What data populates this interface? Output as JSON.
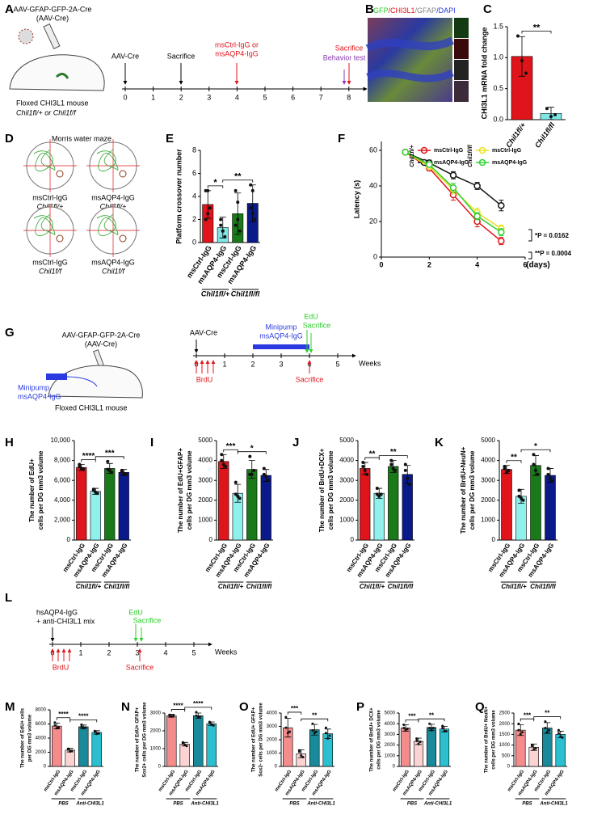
{
  "panel_labels": [
    "A",
    "B",
    "C",
    "D",
    "E",
    "F",
    "G",
    "H",
    "I",
    "J",
    "K",
    "L",
    "M",
    "N",
    "O",
    "P",
    "Q"
  ],
  "panel_a": {
    "vector": "AAV-GFAP-GFP-2A-Cre",
    "vector_short": "(AAV-Cre)",
    "mouse": "Floxed CHI3L1 mouse",
    "genotypes": "Chil1fl/+ or Chil1f/f",
    "timeline": {
      "ticks": [
        0,
        1,
        2,
        3,
        4,
        5,
        6,
        7,
        8
      ],
      "unit": "Weeks",
      "events": [
        "AAV-Cre",
        "Sacrifice",
        "msCtrl-IgG or",
        "msAQP4-IgG",
        "Sacrifice",
        "Behavior test"
      ]
    }
  },
  "panel_b": {
    "stain": [
      "GFP",
      "/CHI3L1",
      "/GFAP",
      "/DAPI"
    ]
  },
  "panel_d": {
    "title": "Morris water maze",
    "maps": [
      {
        "treatment": "msCtrl-IgG",
        "genotype": "Chil1fl/+"
      },
      {
        "treatment": "msAQP4-IgG",
        "genotype": "Chil1fl/+"
      },
      {
        "treatment": "msCtrl-IgG",
        "genotype": "Chil1f/f"
      },
      {
        "treatment": "msAQP4-IgG",
        "genotype": "Chil1f/f"
      }
    ]
  },
  "panel_g": {
    "vector": "AAV-GFAP-GFP-2A-Cre",
    "vector_short": "(AAV-Cre)",
    "pump": "Minipump",
    "pump_drug": "msAQP4-IgG",
    "mouse": "Floxed CHI3L1 mouse",
    "timeline": {
      "ticks": [
        0,
        1,
        2,
        3,
        4,
        5
      ],
      "unit": "Weeks",
      "events": [
        "AAV-Cre",
        "Minipump",
        "msAQP4-IgG",
        "EdU",
        "Sacrifice",
        "BrdU",
        "Sacrifice"
      ]
    }
  },
  "panel_l": {
    "timeline": {
      "ticks": [
        0,
        1,
        2,
        3,
        4,
        5
      ],
      "unit": "Weeks",
      "events": [
        "hsAQP4-IgG",
        "+ anti-CHI3L1 mix",
        "EdU",
        "Sacrifice",
        "BrdU",
        "Sacrifice"
      ]
    }
  },
  "chart_data": [
    {
      "type": "bar",
      "y_label": [
        "CHI3L1 mRNA fold change"
      ],
      "categories": [
        "Chil1fl/+",
        "Chil1fl/fl"
      ],
      "colors": [
        "#e0141b",
        "#7fe6e6"
      ],
      "values": [
        1.02,
        0.1
      ],
      "errors": [
        0.32,
        0.1
      ],
      "points": [
        [
          1.35,
          0.95,
          0.75
        ],
        [
          0.18,
          0.05,
          0.08
        ]
      ],
      "ylim": [
        0,
        1.5
      ],
      "yticks": [
        {
          "value": 0,
          "label": "0.0"
        },
        {
          "value": 0.5,
          "label": "0.5"
        },
        {
          "value": 1,
          "label": "1.0"
        },
        {
          "value": 1.5,
          "label": "1.5"
        }
      ],
      "significance": [
        "**"
      ]
    },
    {
      "type": "bar",
      "y_label": [
        "Platform crossover number"
      ],
      "categories": [
        "msCtrl-IgG",
        "msAQP4-IgG",
        "msCtrl-IgG",
        "msAQP4-IgG"
      ],
      "groups": [
        "Chil1fl/+",
        "Chil1fl/fl"
      ],
      "colors": [
        "#e0141b",
        "#7fe6e6",
        "#1a7a1a",
        "#0a1a8a"
      ],
      "values": [
        3.3,
        1.3,
        2.5,
        3.4
      ],
      "errors": [
        1.2,
        0.9,
        1.8,
        1.6
      ],
      "points": [
        [
          4.5,
          4.5,
          3,
          2,
          2.5
        ],
        [
          2,
          1,
          0.5,
          1.5,
          1
        ],
        [
          4.5,
          2,
          1,
          1.5,
          3.5
        ],
        [
          5,
          4.5,
          2,
          3,
          2.5
        ]
      ],
      "ylim": [
        0,
        8
      ],
      "yticks": [
        0,
        2,
        4,
        6,
        8
      ],
      "significance": [
        "*",
        "**"
      ]
    },
    {
      "type": "line",
      "y_label": [
        "Latency (s)"
      ],
      "x_label": "(days)",
      "x": [
        1,
        2,
        3,
        4,
        5
      ],
      "xlim": [
        0,
        6
      ],
      "xticks": [
        0,
        2,
        4,
        6
      ],
      "ylim": [
        0,
        65
      ],
      "yticks": [
        0,
        20,
        40,
        60
      ],
      "groups": [
        "Chil1fl/+",
        "Chil1fl/fl"
      ],
      "series": [
        {
          "name": "msCtrl-IgG",
          "color": "#e0141b",
          "values": [
            59,
            50,
            35,
            20,
            9
          ],
          "errors": [
            0,
            1.5,
            3,
            3,
            2
          ]
        },
        {
          "name": "msAQP4-IgG",
          "color": "#111111",
          "values": [
            59,
            53,
            46,
            40,
            29
          ],
          "errors": [
            0,
            1.5,
            2,
            2,
            3
          ]
        },
        {
          "name": "msCtrl-IgG",
          "color": "#e8e020",
          "values": [
            59,
            51,
            38,
            25,
            16
          ],
          "errors": [
            0,
            1.5,
            2.5,
            2.5,
            2
          ]
        },
        {
          "name": "msAQP4-IgG",
          "color": "#30d030",
          "values": [
            59,
            52,
            39,
            23,
            14
          ],
          "errors": [
            0,
            1.5,
            2.5,
            2,
            2
          ]
        }
      ],
      "annotations": [
        "*P = 0.0162",
        "**P = 0.0004"
      ]
    },
    {
      "type": "bar",
      "y_label": [
        "The number of EdU+",
        "cells per DG mm3 volume"
      ],
      "categories": [
        "msCtrl-IgG",
        "msAQP4-IgG",
        "msCtrl-IgG",
        "msAQP4-IgG"
      ],
      "groups": [
        "Chil1fl/+",
        "Chil1fl/fl"
      ],
      "colors": [
        "#e0141b",
        "#8ff0ec",
        "#1a7a1a",
        "#0a1a8a"
      ],
      "values": [
        7300,
        4900,
        7200,
        6800
      ],
      "errors": [
        300,
        300,
        500,
        300
      ],
      "points": [
        [
          7600,
          7200,
          7100,
          7400
        ],
        [
          5100,
          4800,
          4700,
          5000
        ],
        [
          7900,
          7000,
          6800,
          7100
        ],
        [
          6900,
          6700,
          6600,
          7000
        ]
      ],
      "ylim": [
        0,
        10000
      ],
      "yticks": [
        0,
        {
          "value": 2000,
          "label": "2,000"
        },
        {
          "value": 4000,
          "label": "4,000"
        },
        {
          "value": 6000,
          "label": "6,000"
        },
        {
          "value": 8000,
          "label": "8,000"
        },
        {
          "value": 10000,
          "label": "10,000"
        }
      ],
      "significance": [
        "****",
        "***"
      ]
    },
    {
      "type": "bar",
      "y_label": [
        "The number of EdU+GFAP+",
        "cells per DG mm3 volume"
      ],
      "categories": [
        "msCtrl-IgG",
        "msAQP4-IgG",
        "msCtrl-IgG",
        "msAQP4-IgG"
      ],
      "groups": [
        "Chil1fl/+",
        "Chil1fl/fl"
      ],
      "colors": [
        "#e0141b",
        "#8ff0ec",
        "#1a7a1a",
        "#0a1a8a"
      ],
      "values": [
        3950,
        2350,
        3550,
        3250
      ],
      "errors": [
        350,
        450,
        450,
        300
      ],
      "points": [
        [
          4300,
          3800,
          3700,
          4000
        ],
        [
          2900,
          2200,
          2100,
          2300
        ],
        [
          4200,
          3300,
          3500,
          3300
        ],
        [
          3600,
          3200,
          3000,
          3300
        ]
      ],
      "ylim": [
        0,
        5000
      ],
      "yticks": [
        0,
        1000,
        2000,
        3000,
        4000,
        5000
      ],
      "significance": [
        "***",
        "*"
      ]
    },
    {
      "type": "bar",
      "y_label": [
        "The number of BrdU+DCX+",
        "cells per DG mm3 volume"
      ],
      "categories": [
        "msCtrl-IgG",
        "msAQP4-IgG",
        "msCtrl-IgG",
        "msAQP4-IgG"
      ],
      "groups": [
        "Chil1fl/+",
        "Chil1fl/fl"
      ],
      "colors": [
        "#e0141b",
        "#8ff0ec",
        "#1a7a1a",
        "#0a1a8a"
      ],
      "values": [
        3600,
        2350,
        3700,
        3300
      ],
      "errors": [
        300,
        250,
        300,
        450
      ],
      "points": [
        [
          3900,
          3500,
          3300,
          3700
        ],
        [
          2600,
          2200,
          2300,
          2300
        ],
        [
          4000,
          3600,
          3500,
          3800
        ],
        [
          3800,
          3100,
          2800,
          3500
        ]
      ],
      "ylim": [
        0,
        5000
      ],
      "yticks": [
        0,
        1000,
        2000,
        3000,
        4000,
        5000
      ],
      "significance": [
        "**",
        "**"
      ]
    },
    {
      "type": "bar",
      "y_label": [
        "The number of BrdU+NeuN+",
        "cells per DG mm3 volume"
      ],
      "categories": [
        "msCtrl-IgG",
        "msAQP4-IgG",
        "msCtrl-IgG",
        "msAQP4-IgG"
      ],
      "groups": [
        "Chil1fl/+",
        "Chil1fl/fl"
      ],
      "colors": [
        "#e0141b",
        "#8ff0ec",
        "#1a7a1a",
        "#0a1a8a"
      ],
      "values": [
        3550,
        2200,
        3750,
        3250
      ],
      "errors": [
        200,
        350,
        500,
        350
      ],
      "points": [
        [
          3700,
          3400,
          3500,
          3600
        ],
        [
          2500,
          2100,
          2000,
          2200
        ],
        [
          4300,
          3500,
          3300,
          3800
        ],
        [
          3600,
          3100,
          3000,
          3300
        ]
      ],
      "ylim": [
        0,
        5000
      ],
      "yticks": [
        0,
        1000,
        2000,
        3000,
        4000,
        5000
      ],
      "significance": [
        "**",
        "*"
      ]
    },
    {
      "type": "bar",
      "y_label": [
        "The number of EdU+ cells",
        "per DG mm3 volume"
      ],
      "categories": [
        "msCtrl-IgG",
        "msAQP4-IgG",
        "msCtrl-IgG",
        "msAQP4-IgG"
      ],
      "groups": [
        "PBS",
        "Anti-CHI3L1"
      ],
      "colors": [
        "#f48c8c",
        "#fcd3d3",
        "#1a8a9a",
        "#2bbfcf"
      ],
      "values": [
        5700,
        2300,
        5600,
        4800
      ],
      "errors": [
        400,
        250,
        250,
        250
      ],
      "points": [
        [
          6200,
          5400,
          5500,
          5800
        ],
        [
          2500,
          2100,
          2200,
          2400
        ],
        [
          5900,
          5400,
          5500,
          5600
        ],
        [
          4900,
          4600,
          4700,
          5000
        ]
      ],
      "ylim": [
        0,
        8000
      ],
      "yticks": [
        0,
        2000,
        4000,
        6000,
        8000
      ],
      "significance": [
        "****",
        "****"
      ]
    },
    {
      "type": "bar",
      "y_label": [
        "The number of EdU+ GFAP+",
        "Sox2+ cells per DG mm3 volume"
      ],
      "categories": [
        "msCtrl-IgG",
        "msAQP4-IgG",
        "msCtrl-IgG",
        "msAQP4-IgG"
      ],
      "groups": [
        "PBS",
        "Anti-CHI3L1"
      ],
      "colors": [
        "#f48c8c",
        "#fcd3d3",
        "#1a8a9a",
        "#2bbfcf"
      ],
      "values": [
        2850,
        1250,
        2850,
        2400
      ],
      "errors": [
        80,
        100,
        150,
        100
      ],
      "points": [
        [
          2900,
          2800,
          2850,
          2850
        ],
        [
          1350,
          1200,
          1150,
          1300
        ],
        [
          3050,
          2750,
          2800,
          2850
        ],
        [
          2500,
          2350,
          2300,
          2450
        ]
      ],
      "ylim": [
        0,
        3000
      ],
      "yticks": [
        0,
        1000,
        2000,
        3000
      ],
      "significance": [
        "****",
        "****"
      ]
    },
    {
      "type": "bar",
      "y_label": [
        "The number of EdU+ GFAP+",
        "Sox2- cells per DG mm3 volume"
      ],
      "categories": [
        "msCtrl-IgG",
        "msAQP4-IgG",
        "msCtrl-IgG",
        "msAQP4-IgG"
      ],
      "groups": [
        "PBS",
        "Anti-CHI3L1"
      ],
      "colors": [
        "#f48c8c",
        "#fcd3d3",
        "#1a8a9a",
        "#2bbfcf"
      ],
      "values": [
        2900,
        950,
        2750,
        2450
      ],
      "errors": [
        700,
        300,
        400,
        350
      ],
      "points": [
        [
          3700,
          2500,
          2600,
          2900
        ],
        [
          1200,
          800,
          700,
          1100
        ],
        [
          3200,
          2500,
          2600,
          2700
        ],
        [
          2900,
          2100,
          2300,
          2500
        ]
      ],
      "ylim": [
        0,
        4000
      ],
      "yticks": [
        0,
        1000,
        2000,
        3000,
        4000
      ],
      "significance": [
        "***",
        "**"
      ]
    },
    {
      "type": "bar",
      "y_label": [
        "The number of BrdU+ DCX+",
        "cells per DG mm3 volume"
      ],
      "categories": [
        "msCtrl-IgG",
        "msAQP4-IgG",
        "msCtrl-IgG",
        "msAQP4-IgG"
      ],
      "groups": [
        "PBS",
        "Anti-CHI3L1"
      ],
      "colors": [
        "#f48c8c",
        "#fcd3d3",
        "#1a8a9a",
        "#2bbfcf"
      ],
      "values": [
        3600,
        2350,
        3650,
        3500
      ],
      "errors": [
        300,
        300,
        300,
        250
      ],
      "points": [
        [
          3900,
          3400,
          3500,
          3600
        ],
        [
          2600,
          2100,
          2300,
          2400
        ],
        [
          4000,
          3400,
          3600,
          3600
        ],
        [
          3800,
          3300,
          3300,
          3600
        ]
      ],
      "ylim": [
        0,
        5000
      ],
      "yticks": [
        0,
        1000,
        2000,
        3000,
        4000,
        5000
      ],
      "significance": [
        "***",
        "**"
      ]
    },
    {
      "type": "bar",
      "y_label": [
        "The number of BrdU+ NeuN+",
        "cells per DG mm3 volume"
      ],
      "categories": [
        "msCtrl-IgG",
        "msAQP4-IgG",
        "msCtrl-IgG",
        "msAQP4-IgG"
      ],
      "groups": [
        "PBS",
        "Anti-CHI3L1"
      ],
      "colors": [
        "#f48c8c",
        "#fcd3d3",
        "#1a8a9a",
        "#2bbfcf"
      ],
      "values": [
        1700,
        900,
        1800,
        1500
      ],
      "errors": [
        250,
        150,
        250,
        150
      ],
      "points": [
        [
          2000,
          1500,
          1600,
          1700
        ],
        [
          1000,
          800,
          850,
          950
        ],
        [
          2100,
          1600,
          1700,
          1800
        ],
        [
          1700,
          1400,
          1350,
          1550
        ]
      ],
      "ylim": [
        0,
        2500
      ],
      "yticks": [
        0,
        500,
        1000,
        1500,
        2000,
        2500
      ],
      "significance": [
        "***",
        "**"
      ]
    }
  ]
}
